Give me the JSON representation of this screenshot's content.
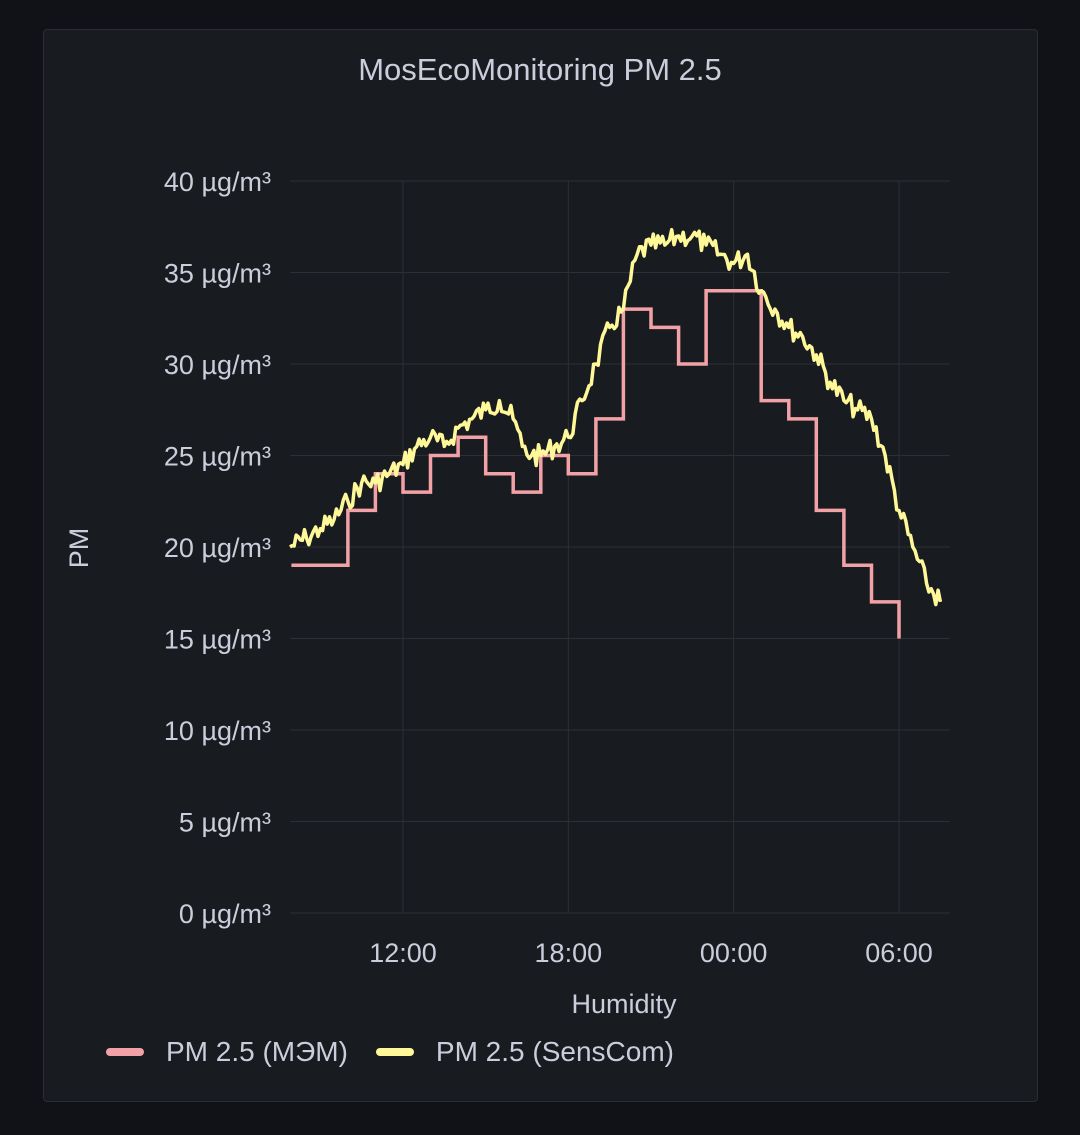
{
  "panel": {
    "title": "MosEcoMonitoring PM 2.5"
  },
  "colors": {
    "background": "#111217",
    "panel": "#181b1f",
    "grid": "#2c2f35",
    "text": "#ccccdc",
    "series_mem": "#f2a2a6",
    "series_senscom": "#fff899"
  },
  "chart_data": {
    "type": "line",
    "title": "MosEcoMonitoring PM 2.5",
    "xlabel": "Humidity",
    "ylabel": "PM",
    "x_ticks": [
      "12:00",
      "18:00",
      "00:00",
      "06:00"
    ],
    "y_ticks": [
      "0 µg/m³",
      "5 µg/m³",
      "10 µg/m³",
      "15 µg/m³",
      "20 µg/m³",
      "25 µg/m³",
      "30 µg/m³",
      "35 µg/m³",
      "40 µg/m³"
    ],
    "ylim": [
      0,
      40
    ],
    "x_range_hours": [
      "07:54",
      "07:54"
    ],
    "grid": true,
    "legend_position": "bottom-left",
    "series": [
      {
        "name": "PM 2.5 (МЭМ)",
        "color": "#f2a2a6",
        "step": true,
        "x": [
          "08:00",
          "09:00",
          "10:00",
          "11:00",
          "12:00",
          "13:00",
          "14:00",
          "15:00",
          "16:00",
          "17:00",
          "18:00",
          "19:00",
          "20:00",
          "21:00",
          "22:00",
          "23:00",
          "00:00",
          "01:00",
          "02:00",
          "03:00",
          "04:00",
          "05:00",
          "06:00"
        ],
        "values": [
          19,
          19,
          22,
          24,
          23,
          25,
          26,
          24,
          23,
          25,
          24,
          27,
          33,
          32,
          30,
          34,
          34,
          28,
          27,
          22,
          19,
          17,
          15
        ]
      },
      {
        "name": "PM 2.5 (SensCom)",
        "color": "#fff899",
        "step": false,
        "x": [
          "07:54",
          "08:30",
          "09:00",
          "09:30",
          "10:00",
          "10:30",
          "11:00",
          "11:30",
          "12:00",
          "12:30",
          "13:00",
          "13:30",
          "14:00",
          "14:30",
          "15:00",
          "15:30",
          "16:00",
          "16:20",
          "16:40",
          "17:00",
          "17:30",
          "18:00",
          "18:30",
          "19:00",
          "19:30",
          "20:00",
          "20:30",
          "21:00",
          "21:30",
          "22:00",
          "22:30",
          "23:00",
          "23:30",
          "00:00",
          "00:30",
          "01:00",
          "01:30",
          "02:00",
          "02:30",
          "03:00",
          "03:30",
          "04:00",
          "04:30",
          "05:00",
          "05:30",
          "06:00",
          "06:30",
          "07:00",
          "07:30"
        ],
        "values": [
          20,
          20.5,
          21,
          21.5,
          22.5,
          23.5,
          23.5,
          24,
          24.5,
          25.5,
          26,
          25.5,
          26.5,
          27,
          27.5,
          28,
          27,
          25.5,
          25,
          25,
          25.5,
          26,
          28,
          30,
          32,
          33,
          36,
          36.5,
          36.5,
          37,
          37,
          36.5,
          36,
          35.5,
          36,
          34,
          33,
          32,
          31.5,
          30.5,
          29,
          28,
          27.5,
          27,
          25,
          22,
          20,
          18,
          17
        ]
      }
    ]
  }
}
